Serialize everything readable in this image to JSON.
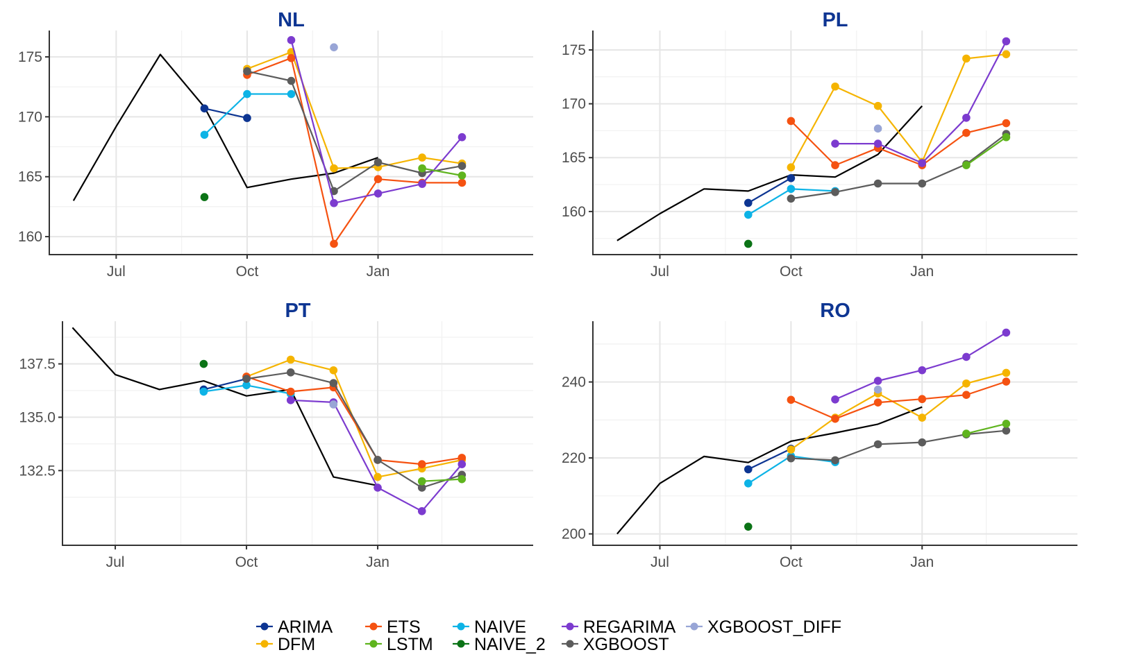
{
  "chart_data": {
    "type": "line",
    "layout": "2x2 facet grid",
    "grid": true,
    "legend_position": "bottom",
    "x_axis": {
      "type": "date",
      "tick_labels": [
        "Jul",
        "Oct",
        "Jan"
      ]
    },
    "actual_series_color": "#000000",
    "series_styles": [
      {
        "name": "ARIMA",
        "color": "#0d3592"
      },
      {
        "name": "DFM",
        "color": "#f5b400"
      },
      {
        "name": "ETS",
        "color": "#f55211"
      },
      {
        "name": "LSTM",
        "color": "#5fb41e"
      },
      {
        "name": "NAIVE",
        "color": "#0db3e6"
      },
      {
        "name": "NAIVE_2",
        "color": "#0b7316"
      },
      {
        "name": "REGARIMA",
        "color": "#7c3bcf"
      },
      {
        "name": "XGBOOST",
        "color": "#5c5c5c"
      },
      {
        "name": "XGBOOST_DIFF",
        "color": "#98a5d6"
      }
    ],
    "legend_rows": [
      [
        "ARIMA",
        "ETS",
        "NAIVE",
        "REGARIMA",
        "XGBOOST_DIFF"
      ],
      [
        "DFM",
        "LSTM",
        "NAIVE_2",
        "XGBOOST"
      ]
    ],
    "panels": [
      {
        "title": "NL",
        "x_range": [
          "2022-05-15",
          "2023-04-20"
        ],
        "y_range": [
          158.5,
          177.2
        ],
        "y_ticks": [
          160,
          165,
          170,
          175
        ],
        "y_tick_labels": [
          "160",
          "165",
          "170",
          "175"
        ],
        "actual": {
          "x": [
            "2022-06-01",
            "2022-07-01",
            "2022-08-01",
            "2022-09-01",
            "2022-10-01",
            "2022-11-01",
            "2022-12-01",
            "2023-01-01"
          ],
          "y": [
            163.0,
            169.2,
            175.2,
            170.8,
            164.1,
            164.8,
            165.3,
            166.6
          ]
        },
        "forecasts": [
          {
            "name": "ARIMA",
            "x": [
              "2022-09-01",
              "2022-10-01"
            ],
            "y": [
              170.7,
              169.9
            ]
          },
          {
            "name": "NAIVE",
            "x": [
              "2022-09-01",
              "2022-10-01",
              "2022-11-01"
            ],
            "y": [
              168.5,
              171.9,
              171.9
            ]
          },
          {
            "name": "NAIVE_2",
            "x": [
              "2022-09-01"
            ],
            "y": [
              163.3
            ]
          },
          {
            "name": "DFM",
            "x": [
              "2022-10-01",
              "2022-11-01",
              "2022-12-01",
              "2023-01-01",
              "2023-02-01",
              "2023-03-01"
            ],
            "y": [
              174.0,
              175.4,
              165.7,
              165.8,
              166.6,
              166.1
            ]
          },
          {
            "name": "ETS",
            "x": [
              "2022-10-01",
              "2022-11-01",
              "2022-12-01",
              "2023-01-01",
              "2023-02-01",
              "2023-03-01"
            ],
            "y": [
              173.5,
              174.9,
              159.4,
              164.8,
              164.5,
              164.5
            ]
          },
          {
            "name": "XGBOOST",
            "x": [
              "2022-10-01",
              "2022-11-01",
              "2022-12-01",
              "2023-01-01",
              "2023-02-01",
              "2023-03-01"
            ],
            "y": [
              173.8,
              173.0,
              163.8,
              166.2,
              165.3,
              165.9
            ]
          },
          {
            "name": "REGARIMA",
            "x": [
              "2022-11-01",
              "2022-12-01",
              "2023-01-01",
              "2023-02-01",
              "2023-03-01"
            ],
            "y": [
              176.4,
              162.8,
              163.6,
              164.4,
              168.3
            ]
          },
          {
            "name": "XGBOOST_DIFF",
            "x": [
              "2022-12-01"
            ],
            "y": [
              175.8
            ]
          },
          {
            "name": "LSTM",
            "x": [
              "2023-02-01",
              "2023-03-01"
            ],
            "y": [
              165.7,
              165.1
            ]
          }
        ]
      },
      {
        "title": "PL",
        "x_range": [
          "2022-05-15",
          "2023-04-20"
        ],
        "y_range": [
          156.0,
          176.8
        ],
        "y_ticks": [
          160,
          165,
          170,
          175
        ],
        "y_tick_labels": [
          "160",
          "165",
          "170",
          "175"
        ],
        "actual": {
          "x": [
            "2022-06-01",
            "2022-07-01",
            "2022-08-01",
            "2022-09-01",
            "2022-10-01",
            "2022-11-01",
            "2022-12-01",
            "2023-01-01"
          ],
          "y": [
            157.3,
            159.8,
            162.1,
            161.9,
            163.4,
            163.2,
            165.3,
            169.8
          ]
        },
        "forecasts": [
          {
            "name": "ARIMA",
            "x": [
              "2022-09-01",
              "2022-10-01"
            ],
            "y": [
              160.8,
              163.1
            ]
          },
          {
            "name": "NAIVE",
            "x": [
              "2022-09-01",
              "2022-10-01",
              "2022-11-01"
            ],
            "y": [
              159.7,
              162.1,
              161.9
            ]
          },
          {
            "name": "NAIVE_2",
            "x": [
              "2022-09-01"
            ],
            "y": [
              157.0
            ]
          },
          {
            "name": "DFM",
            "x": [
              "2022-10-01",
              "2022-11-01",
              "2022-12-01",
              "2023-01-01",
              "2023-02-01",
              "2023-03-01"
            ],
            "y": [
              164.1,
              171.6,
              169.8,
              164.6,
              174.2,
              174.6
            ]
          },
          {
            "name": "ETS",
            "x": [
              "2022-10-01",
              "2022-11-01",
              "2022-12-01",
              "2023-01-01",
              "2023-02-01",
              "2023-03-01"
            ],
            "y": [
              168.4,
              164.3,
              165.9,
              164.3,
              167.3,
              168.2
            ]
          },
          {
            "name": "XGBOOST",
            "x": [
              "2022-10-01",
              "2022-11-01",
              "2022-12-01",
              "2023-01-01",
              "2023-02-01",
              "2023-03-01"
            ],
            "y": [
              161.2,
              161.8,
              162.6,
              162.6,
              164.4,
              167.2
            ]
          },
          {
            "name": "REGARIMA",
            "x": [
              "2022-11-01",
              "2022-12-01",
              "2023-01-01",
              "2023-02-01",
              "2023-03-01"
            ],
            "y": [
              166.3,
              166.3,
              164.5,
              168.7,
              175.8
            ]
          },
          {
            "name": "XGBOOST_DIFF",
            "x": [
              "2022-12-01"
            ],
            "y": [
              167.7
            ]
          },
          {
            "name": "LSTM",
            "x": [
              "2023-02-01",
              "2023-03-01"
            ],
            "y": [
              164.3,
              166.9
            ]
          }
        ]
      },
      {
        "title": "PT",
        "x_range": [
          "2022-05-25",
          "2023-04-20"
        ],
        "y_range": [
          129.0,
          139.5
        ],
        "y_ticks": [
          132.5,
          135.0,
          137.5
        ],
        "y_tick_labels": [
          "132.5",
          "135.0",
          "137.5"
        ],
        "actual": {
          "x": [
            "2022-06-01",
            "2022-07-01",
            "2022-08-01",
            "2022-09-01",
            "2022-10-01",
            "2022-11-01",
            "2022-12-01",
            "2023-01-01"
          ],
          "y": [
            139.2,
            137.0,
            136.3,
            136.7,
            136.0,
            136.3,
            132.2,
            131.8
          ]
        },
        "forecasts": [
          {
            "name": "ARIMA",
            "x": [
              "2022-09-01",
              "2022-10-01"
            ],
            "y": [
              136.3,
              136.8
            ]
          },
          {
            "name": "NAIVE",
            "x": [
              "2022-09-01",
              "2022-10-01",
              "2022-11-01"
            ],
            "y": [
              136.2,
              136.5,
              136.1
            ]
          },
          {
            "name": "NAIVE_2",
            "x": [
              "2022-09-01"
            ],
            "y": [
              137.5
            ]
          },
          {
            "name": "DFM",
            "x": [
              "2022-10-01",
              "2022-11-01",
              "2022-12-01",
              "2023-01-01",
              "2023-02-01",
              "2023-03-01"
            ],
            "y": [
              136.9,
              137.7,
              137.2,
              132.2,
              132.6,
              133.0
            ]
          },
          {
            "name": "ETS",
            "x": [
              "2022-10-01",
              "2022-11-01",
              "2022-12-01",
              "2023-01-01",
              "2023-02-01",
              "2023-03-01"
            ],
            "y": [
              136.9,
              136.2,
              136.4,
              133.0,
              132.8,
              133.1
            ]
          },
          {
            "name": "XGBOOST",
            "x": [
              "2022-10-01",
              "2022-11-01",
              "2022-12-01",
              "2023-01-01",
              "2023-02-01",
              "2023-03-01"
            ],
            "y": [
              136.8,
              137.1,
              136.6,
              133.0,
              131.7,
              132.3
            ]
          },
          {
            "name": "REGARIMA",
            "x": [
              "2022-11-01",
              "2022-12-01",
              "2023-01-01",
              "2023-02-01",
              "2023-03-01"
            ],
            "y": [
              135.8,
              135.7,
              131.7,
              130.6,
              132.8
            ]
          },
          {
            "name": "XGBOOST_DIFF",
            "x": [
              "2022-12-01"
            ],
            "y": [
              135.6
            ]
          },
          {
            "name": "LSTM",
            "x": [
              "2023-02-01",
              "2023-03-01"
            ],
            "y": [
              132.0,
              132.1
            ]
          }
        ]
      },
      {
        "title": "RO",
        "x_range": [
          "2022-05-15",
          "2023-04-20"
        ],
        "y_range": [
          197.0,
          256.0
        ],
        "y_ticks": [
          200,
          220,
          240
        ],
        "y_tick_labels": [
          "200",
          "220",
          "240"
        ],
        "actual": {
          "x": [
            "2022-06-01",
            "2022-07-01",
            "2022-08-01",
            "2022-09-01",
            "2022-10-01",
            "2022-11-01",
            "2022-12-01",
            "2023-01-01"
          ],
          "y": [
            200.0,
            213.3,
            220.4,
            218.8,
            224.4,
            226.6,
            228.9,
            233.4
          ]
        },
        "forecasts": [
          {
            "name": "ARIMA",
            "x": [
              "2022-09-01",
              "2022-10-01"
            ],
            "y": [
              217.0,
              222.4
            ]
          },
          {
            "name": "NAIVE",
            "x": [
              "2022-09-01",
              "2022-10-01",
              "2022-11-01"
            ],
            "y": [
              213.3,
              220.5,
              218.9
            ]
          },
          {
            "name": "NAIVE_2",
            "x": [
              "2022-09-01"
            ],
            "y": [
              201.9
            ]
          },
          {
            "name": "DFM",
            "x": [
              "2022-10-01",
              "2022-11-01",
              "2022-12-01",
              "2023-01-01",
              "2023-02-01",
              "2023-03-01"
            ],
            "y": [
              222.2,
              230.6,
              237.0,
              230.6,
              239.6,
              242.4
            ]
          },
          {
            "name": "ETS",
            "x": [
              "2022-10-01",
              "2022-11-01",
              "2022-12-01",
              "2023-01-01",
              "2023-02-01",
              "2023-03-01"
            ],
            "y": [
              235.3,
              230.3,
              234.6,
              235.5,
              236.6,
              240.1
            ]
          },
          {
            "name": "XGBOOST",
            "x": [
              "2022-10-01",
              "2022-11-01",
              "2022-12-01",
              "2023-01-01",
              "2023-02-01",
              "2023-03-01"
            ],
            "y": [
              219.9,
              219.4,
              223.6,
              224.1,
              226.2,
              227.2
            ]
          },
          {
            "name": "REGARIMA",
            "x": [
              "2022-11-01",
              "2022-12-01",
              "2023-01-01",
              "2023-02-01",
              "2023-03-01"
            ],
            "y": [
              235.4,
              240.3,
              243.1,
              246.6,
              253.0
            ]
          },
          {
            "name": "XGBOOST_DIFF",
            "x": [
              "2022-12-01"
            ],
            "y": [
              238.0
            ]
          },
          {
            "name": "LSTM",
            "x": [
              "2023-02-01",
              "2023-03-01"
            ],
            "y": [
              226.4,
              229.0
            ]
          }
        ]
      }
    ]
  }
}
